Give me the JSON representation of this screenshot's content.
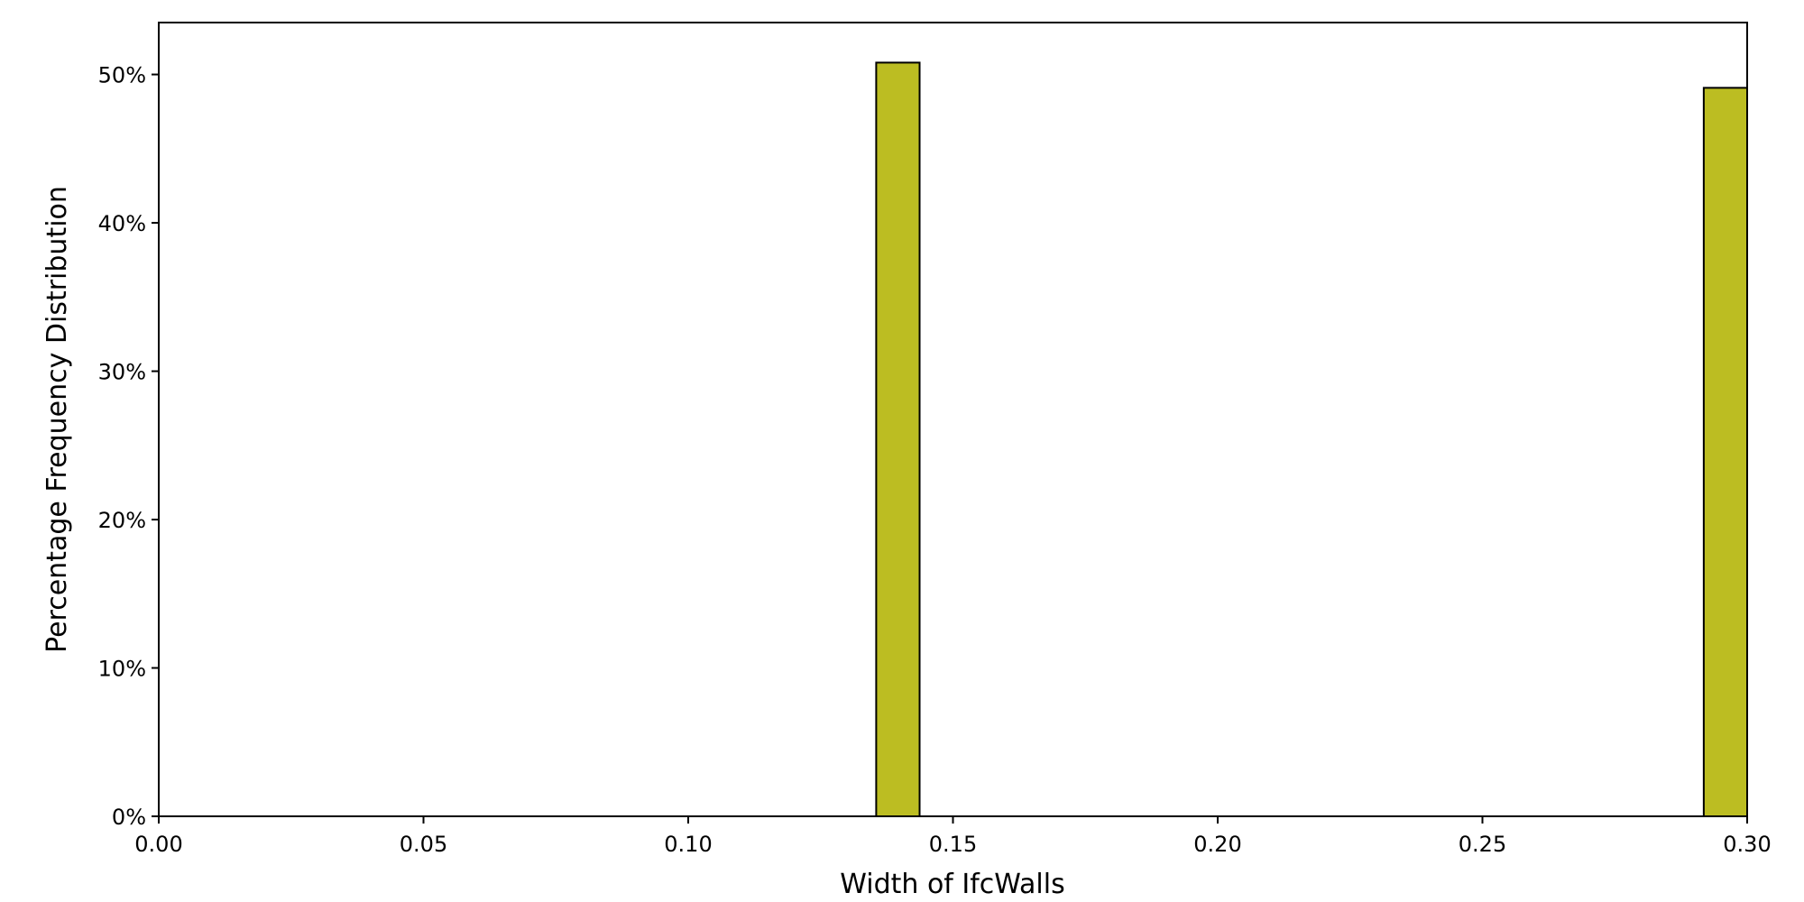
{
  "chart_data": {
    "type": "bar",
    "title": "",
    "xlabel": "Width of IfcWalls",
    "ylabel": "Percentage Frequency Distribution",
    "xlim": [
      0.0,
      0.3
    ],
    "ylim": [
      0,
      53.5
    ],
    "x_ticks": [
      0.0,
      0.05,
      0.1,
      0.15,
      0.2,
      0.25,
      0.3
    ],
    "x_tick_labels": [
      "0.00",
      "0.05",
      "0.10",
      "0.15",
      "0.20",
      "0.25",
      "0.30"
    ],
    "y_ticks": [
      0,
      10,
      20,
      30,
      40,
      50
    ],
    "y_tick_labels": [
      "0%",
      "10%",
      "20%",
      "30%",
      "40%",
      "50%"
    ],
    "bins": [
      {
        "x_start": 0.1355,
        "x_end": 0.1437,
        "value": 50.8
      },
      {
        "x_start": 0.2918,
        "x_end": 0.3,
        "value": 49.1
      }
    ],
    "grid": false,
    "legend": "none",
    "colors": {
      "bar_fill": "#bcbd22",
      "bar_edge": "#000000",
      "axis": "#000000"
    }
  }
}
